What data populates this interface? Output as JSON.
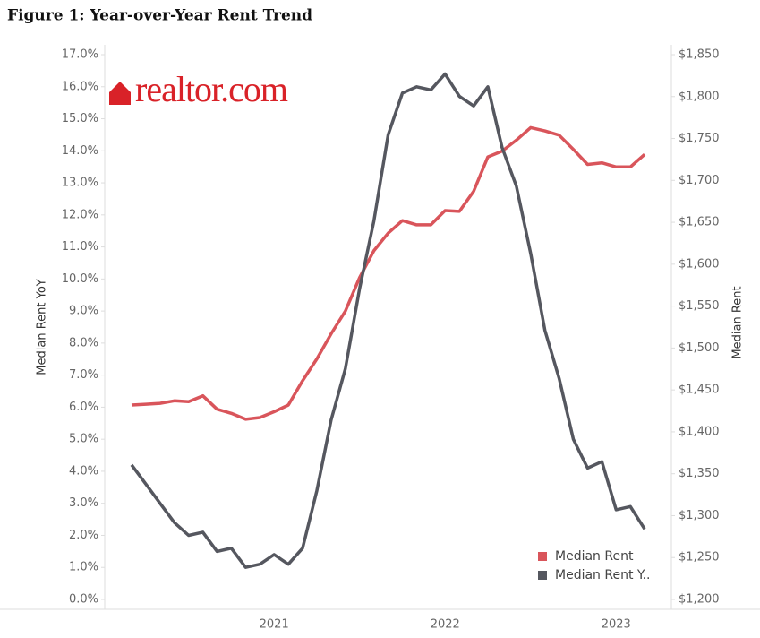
{
  "chart_data": {
    "type": "line",
    "title": "Figure 1: Year-over-Year Rent Trend",
    "logo": "realtor.com",
    "y_label": "Median Rent YoY",
    "y2_label": "Median Rent",
    "categories": [
      null,
      null,
      null,
      null,
      null,
      null,
      null,
      null,
      null,
      null,
      "2021",
      null,
      null,
      null,
      null,
      null,
      null,
      null,
      null,
      null,
      null,
      null,
      "2022",
      null,
      null,
      null,
      null,
      null,
      null,
      null,
      null,
      null,
      null,
      null,
      "2023",
      null,
      null
    ],
    "series": [
      {
        "name": "Median Rent",
        "color": "#d9555b",
        "axis": "y2",
        "values": [
          1432,
          1433,
          1434,
          1437,
          1436,
          1443,
          1427,
          1422,
          1415,
          1417,
          1424,
          1432,
          1461,
          1487,
          1517,
          1544,
          1584,
          1616,
          1637,
          1652,
          1647,
          1647,
          1664,
          1663,
          1687,
          1728,
          1735,
          1748,
          1763,
          1759,
          1754,
          1737,
          1719,
          1721,
          1716,
          1716,
          1731
        ]
      },
      {
        "name": "Median Rent Y..",
        "color": "#55575f",
        "values": [
          4.2,
          3.6,
          3.0,
          2.4,
          2.0,
          2.1,
          1.5,
          1.6,
          1.0,
          1.1,
          1.4,
          1.1,
          1.6,
          3.4,
          5.6,
          7.2,
          9.7,
          11.8,
          14.5,
          15.8,
          16.0,
          15.9,
          16.4,
          15.7,
          15.4,
          16.0,
          14.1,
          12.9,
          10.8,
          8.4,
          6.9,
          5.0,
          4.1,
          4.3,
          2.8,
          2.9,
          2.2
        ]
      }
    ],
    "ylim": [
      0,
      17
    ],
    "yticks": [
      {
        "value": 0,
        "label": "0.0%"
      },
      {
        "value": 1,
        "label": "1.0%"
      },
      {
        "value": 2,
        "label": "2.0%"
      },
      {
        "value": 3,
        "label": "3.0%"
      },
      {
        "value": 4,
        "label": "4.0%"
      },
      {
        "value": 5,
        "label": "5.0%"
      },
      {
        "value": 6,
        "label": "6.0%"
      },
      {
        "value": 7,
        "label": "7.0%"
      },
      {
        "value": 8,
        "label": "8.0%"
      },
      {
        "value": 9,
        "label": "9.0%"
      },
      {
        "value": 10,
        "label": "10.0%"
      },
      {
        "value": 11,
        "label": "11.0%"
      },
      {
        "value": 12,
        "label": "12.0%"
      },
      {
        "value": 13,
        "label": "13.0%"
      },
      {
        "value": 14,
        "label": "14.0%"
      },
      {
        "value": 15,
        "label": "15.0%"
      },
      {
        "value": 16,
        "label": "16.0%"
      },
      {
        "value": 17,
        "label": "17.0%"
      }
    ],
    "y2lim": [
      1200,
      1850
    ],
    "y2ticks": [
      {
        "value": 1200,
        "label": "$1,200"
      },
      {
        "value": 1250,
        "label": "$1,250"
      },
      {
        "value": 1300,
        "label": "$1,300"
      },
      {
        "value": 1350,
        "label": "$1,350"
      },
      {
        "value": 1400,
        "label": "$1,400"
      },
      {
        "value": 1450,
        "label": "$1,450"
      },
      {
        "value": 1500,
        "label": "$1,500"
      },
      {
        "value": 1550,
        "label": "$1,550"
      },
      {
        "value": 1600,
        "label": "$1,600"
      },
      {
        "value": 1650,
        "label": "$1,650"
      },
      {
        "value": 1700,
        "label": "$1,700"
      },
      {
        "value": 1750,
        "label": "$1,750"
      },
      {
        "value": 1800,
        "label": "$1,800"
      },
      {
        "value": 1850,
        "label": "$1,850"
      }
    ],
    "legend": "lower right"
  }
}
